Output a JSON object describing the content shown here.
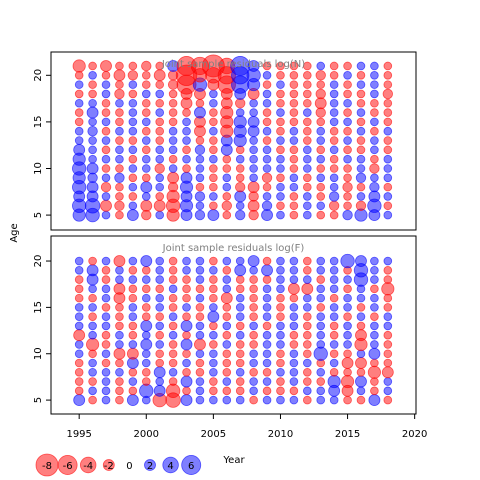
{
  "chart_data": {
    "type": "bubble",
    "xlabel": "Year",
    "ylabel": "Age",
    "x": [
      1995,
      1996,
      1997,
      1998,
      1999,
      2000,
      2001,
      2002,
      2003,
      2004,
      2005,
      2006,
      2007,
      2008,
      2009,
      2010,
      2011,
      2012,
      2013,
      2014,
      2015,
      2016,
      2017,
      2018
    ],
    "xlim": [
      1992.9,
      2020.1
    ],
    "xticks": [
      1995,
      2000,
      2005,
      2010,
      2015,
      2020
    ],
    "negative_color": "#ff0000",
    "positive_color": "#0000ff",
    "legend": [
      -8,
      -6,
      -4,
      -2,
      0,
      2,
      4,
      6
    ],
    "panels": [
      {
        "title": "Joint sample residuals log(N)",
        "ylim": [
          3.4,
          22.5
        ],
        "yticks": [
          5,
          10,
          15,
          20
        ],
        "ages": [
          5,
          6,
          7,
          8,
          9,
          10,
          11,
          12,
          13,
          14,
          15,
          16,
          17,
          18,
          19,
          20,
          21
        ],
        "values": [
          [
            2.5,
            3,
            1,
            -1,
            2,
            -1.5,
            1,
            -2.5,
            2,
            1.5,
            2,
            -1,
            1.5,
            -1.5,
            2,
            1,
            -1,
            1,
            -1,
            -1,
            1.5,
            2.5,
            2,
            1
          ],
          [
            3,
            3.5,
            -2,
            -1.5,
            1,
            -2,
            -2,
            -3,
            2.5,
            1,
            -1,
            -1.5,
            1,
            -2,
            1.5,
            -1,
            -1,
            1,
            1,
            -1.5,
            -1,
            -1.5,
            3,
            -1
          ],
          [
            2,
            2,
            1,
            -1,
            -1,
            1,
            -1,
            -2.5,
            2,
            1.5,
            1,
            -1,
            2,
            -1.5,
            1,
            1,
            -1,
            1,
            -1,
            1.5,
            -1,
            1,
            2,
            1
          ],
          [
            3,
            2,
            -1.5,
            -1,
            1,
            2,
            1,
            -1.5,
            2.5,
            -1,
            -1,
            1,
            -1.5,
            -2,
            -1,
            1,
            1,
            -1,
            -1,
            1,
            -1.5,
            -1,
            1.5,
            -1
          ],
          [
            2.5,
            1.5,
            1,
            1.5,
            -1,
            -1,
            1,
            -2,
            2,
            1,
            -1,
            1,
            -1,
            1,
            -1.5,
            -1,
            1,
            -1,
            1,
            1,
            -1,
            1.5,
            1,
            1
          ],
          [
            3,
            2,
            -1,
            -1,
            1,
            1,
            -1.5,
            1,
            -1,
            1,
            -1,
            -1,
            -1,
            1,
            1,
            1,
            -1,
            1,
            -1,
            -1,
            -1,
            1,
            -1.5,
            1
          ],
          [
            2.5,
            1,
            1,
            1,
            -1,
            1,
            1,
            -1,
            1,
            1,
            1,
            -1,
            1,
            1,
            1,
            1,
            -1,
            1,
            1,
            -1,
            1,
            1,
            -1,
            1
          ],
          [
            2,
            1,
            -1,
            1,
            1,
            -1,
            1,
            1,
            -1,
            1.5,
            -1,
            2,
            -1,
            1,
            1,
            -1,
            -1,
            1,
            -1,
            1,
            -1,
            -1,
            1,
            -1
          ],
          [
            1,
            1,
            1,
            -1,
            -1,
            1,
            -1,
            1,
            1,
            -1,
            -1,
            2,
            2.5,
            1,
            -1,
            1,
            1,
            -1,
            1,
            -1,
            1,
            -1,
            1,
            -1
          ],
          [
            1,
            1.5,
            -1,
            1,
            1,
            -1,
            -1,
            1,
            1,
            -2,
            1,
            -2.5,
            2.5,
            2,
            1,
            -1,
            1,
            -1,
            1,
            -1,
            -1,
            1,
            -1,
            1
          ],
          [
            -1,
            1,
            1,
            -1,
            1,
            1,
            -1,
            -1,
            1,
            -2,
            -1,
            -2.5,
            2.5,
            2,
            -1,
            -1,
            -1,
            -1,
            -1,
            1,
            1,
            -1,
            1,
            -1
          ],
          [
            -1,
            2,
            -1,
            -1,
            1,
            -1,
            1,
            -1,
            -1,
            2,
            -1,
            -2.5,
            1,
            1,
            -1,
            1,
            -1,
            1,
            -1.5,
            1,
            -1,
            1,
            -1,
            -1
          ],
          [
            1,
            1,
            -1,
            1,
            1,
            -1,
            -1,
            -1,
            -2,
            -1,
            1,
            -2,
            -1.5,
            1,
            1,
            -1,
            -1,
            -1,
            -2,
            1,
            1,
            -1,
            -1,
            -1
          ],
          [
            -1,
            -1,
            1,
            -1.5,
            -1,
            1,
            1,
            -1,
            -2,
            -2,
            1,
            -2,
            2,
            -2,
            1,
            -1,
            -1,
            -1,
            -1.5,
            1,
            -1,
            -1,
            1,
            -1.5
          ],
          [
            1,
            -1,
            1,
            -1,
            1,
            -1,
            -1,
            -1.5,
            -6,
            3,
            -2,
            -5,
            5,
            2.5,
            -1,
            1,
            -1,
            -1,
            -1,
            1,
            -1,
            1,
            1,
            -1
          ],
          [
            -1,
            1,
            -1,
            -2,
            -1.5,
            -1,
            -2,
            -1.5,
            -7,
            -3,
            -4,
            -5,
            5,
            3,
            1,
            -1,
            -1,
            -1,
            -1.5,
            -1,
            1,
            -1,
            1,
            -1
          ],
          [
            -2.5,
            -1,
            -2,
            -1,
            -1,
            -1.5,
            -1,
            2,
            -6,
            -5,
            -8,
            -4,
            6,
            2,
            -1,
            -1,
            -1,
            -1,
            1,
            -1,
            -1,
            1,
            1,
            -1
          ]
        ]
      },
      {
        "title": "Joint sample residuals log(F)",
        "ylim": [
          3.5,
          22.7
        ],
        "yticks": [
          5,
          10,
          15,
          20
        ],
        "ages": [
          5,
          6,
          7,
          8,
          9,
          10,
          11,
          12,
          13,
          14,
          15,
          16,
          17,
          18,
          19,
          20
        ],
        "values": [
          [
            2,
            -1,
            1,
            -1,
            2,
            1,
            -3,
            -3.5,
            2,
            1,
            1,
            1,
            1,
            -1,
            1,
            1,
            1,
            -1,
            1,
            1,
            -1,
            -1,
            2,
            -1
          ],
          [
            -1,
            1,
            1,
            -1,
            -1,
            3,
            2,
            -3,
            -1,
            1,
            -1,
            -1,
            -1,
            1,
            -1,
            -1,
            -1,
            1,
            1,
            2,
            -2,
            1,
            -1,
            1
          ],
          [
            -1,
            -1,
            1,
            -1,
            1,
            -1,
            1,
            -1,
            2,
            1,
            -1,
            1,
            -1,
            1,
            1,
            -1,
            1,
            -1,
            -1,
            2.5,
            -2.5,
            2,
            -1,
            1
          ],
          [
            -1,
            1,
            1,
            1,
            -1,
            -1,
            2,
            1,
            -1,
            -1,
            1,
            -1,
            1,
            -1,
            -1,
            1,
            1,
            -1,
            1,
            -1,
            -1,
            -1,
            -2.5,
            -2
          ],
          [
            -1,
            1,
            -1,
            -1,
            2,
            1,
            -1,
            -1,
            1,
            -1,
            1,
            -1,
            -1,
            1,
            1,
            -1,
            1,
            1,
            -1,
            1,
            -2,
            -2,
            -1,
            -1
          ],
          [
            1,
            -1,
            1,
            -2,
            -2,
            1,
            -1,
            -1,
            -1,
            1,
            1,
            -1,
            -1,
            1,
            1,
            -1,
            1,
            -1,
            3,
            -1,
            -1,
            1,
            2,
            -1
          ],
          [
            1,
            -2.5,
            -1,
            1,
            1,
            2,
            1,
            -1,
            2,
            -2,
            -1,
            1,
            -1,
            -1,
            1,
            1,
            -1,
            -1,
            1,
            1,
            1,
            -2.5,
            1,
            -1
          ],
          [
            -2,
            1,
            -1,
            1,
            -1,
            1,
            -1,
            1,
            -1,
            1,
            1,
            -1,
            1,
            -1,
            1,
            1,
            -1,
            -1,
            1,
            -1,
            1,
            -2,
            1,
            -1
          ],
          [
            1,
            1,
            1,
            -1,
            -1,
            2,
            1,
            -1,
            2,
            1,
            -1,
            1,
            -1,
            1,
            -1,
            1,
            1,
            -1,
            1,
            -1,
            1,
            -1,
            1,
            1
          ],
          [
            1,
            -1,
            1,
            -1,
            1,
            -1,
            -1,
            1,
            -1,
            -1,
            2,
            -1,
            1,
            -1,
            1,
            -1,
            1,
            -1,
            1,
            1,
            -1,
            1,
            -1,
            1
          ],
          [
            1,
            1,
            -1,
            -1,
            1,
            -1,
            1,
            -1,
            1,
            -1,
            1,
            -1,
            1,
            -1,
            1,
            -1,
            1,
            1,
            -1,
            1,
            1,
            -1,
            1,
            -1
          ],
          [
            -1,
            -1,
            1,
            -2,
            -1,
            1,
            1,
            -1,
            -1,
            1,
            -1,
            -2,
            1,
            -1,
            1,
            -1,
            -1,
            1,
            1,
            -1,
            1,
            1,
            1,
            -1
          ],
          [
            -1,
            1,
            1,
            -2,
            -1,
            -1,
            -1,
            1,
            -1,
            -1,
            -1,
            1,
            -1,
            -1,
            1,
            1,
            -2,
            -2,
            1,
            1,
            -1,
            1,
            -1,
            -2.5
          ],
          [
            -1,
            2,
            -1,
            1,
            1,
            1,
            1,
            -1,
            -1,
            1,
            -1,
            1,
            -1,
            -1,
            -1,
            1,
            1,
            1,
            -1,
            1,
            1,
            3,
            1,
            -1
          ],
          [
            1,
            2,
            -1,
            1,
            -1,
            -1,
            1,
            -1,
            1,
            1,
            1,
            -1,
            2,
            1,
            2,
            1,
            1,
            -1,
            1,
            1,
            -1,
            3,
            1,
            -1
          ],
          [
            1,
            -1,
            1,
            -2,
            1,
            2,
            1,
            -1,
            1,
            1,
            -1,
            1,
            1,
            2,
            -1,
            1,
            1,
            -1,
            1,
            1,
            3,
            2,
            1,
            1
          ]
        ]
      }
    ]
  }
}
